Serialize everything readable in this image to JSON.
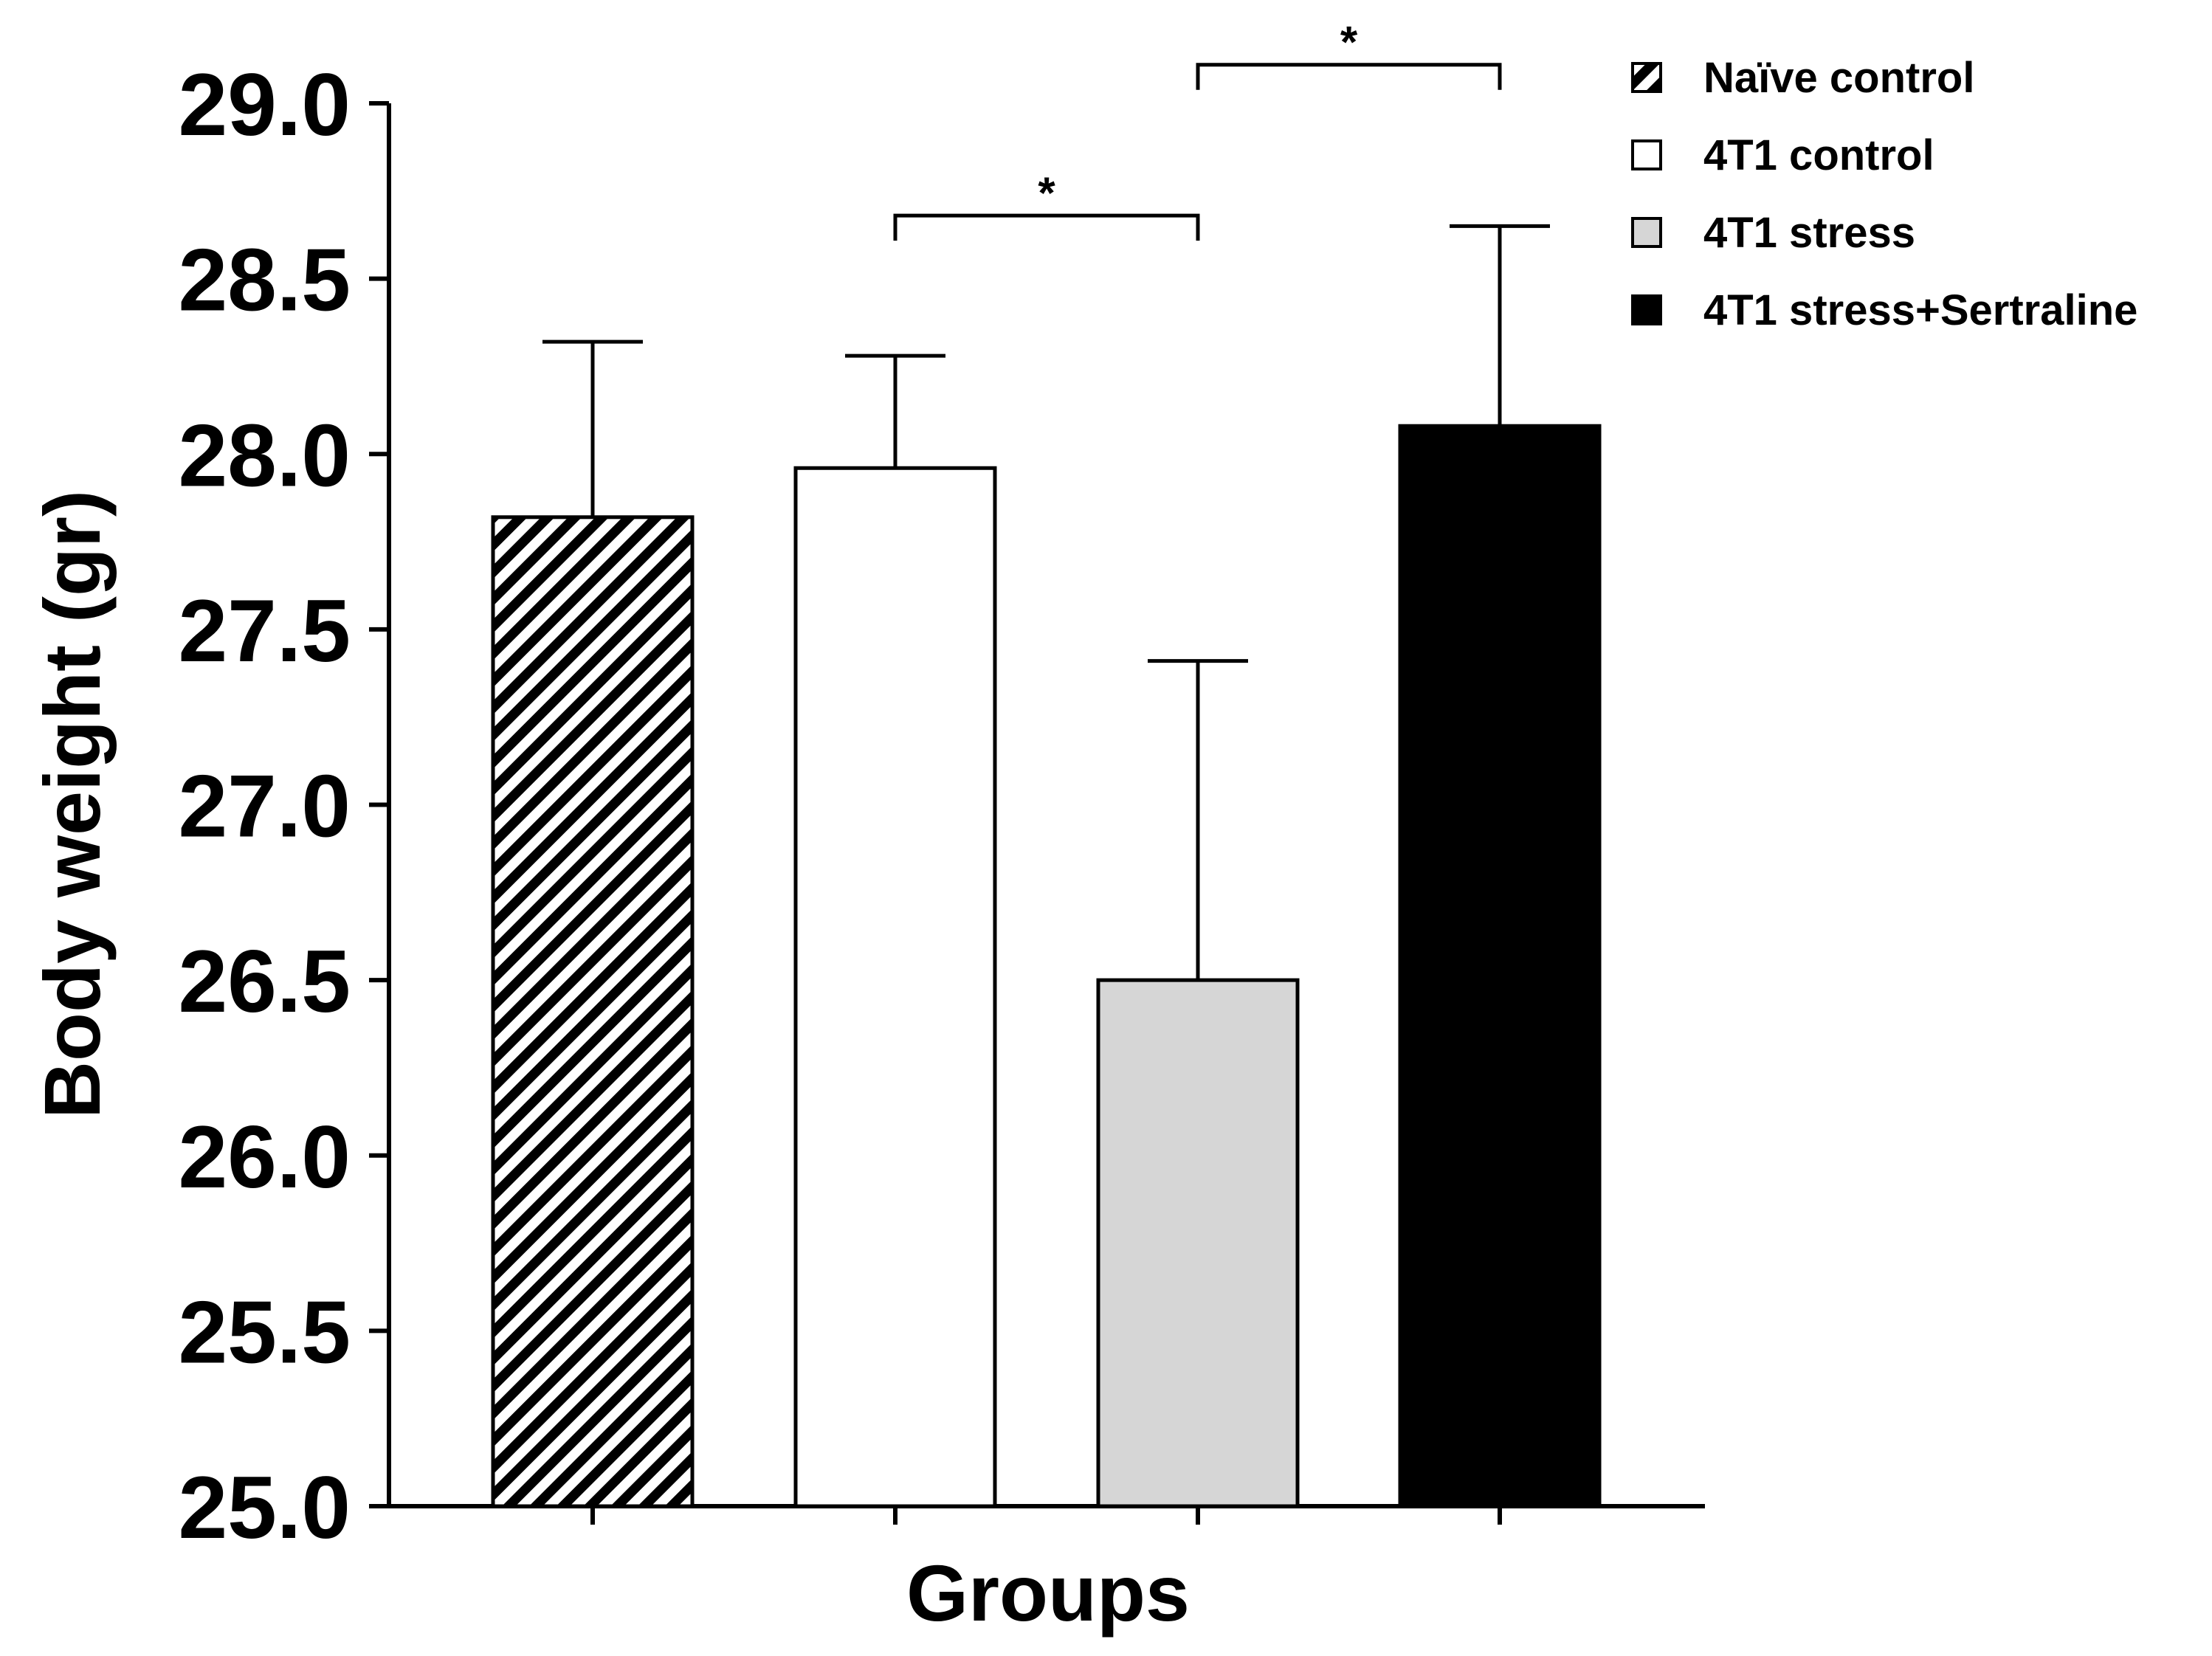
{
  "chart_data": {
    "type": "bar",
    "title": "",
    "xlabel": "Groups",
    "ylabel": "Body weight (gr)",
    "ylim": [
      25.0,
      29.0
    ],
    "yticks": [
      "25.0",
      "25.5",
      "26.0",
      "26.5",
      "27.0",
      "27.5",
      "28.0",
      "28.5",
      "29.0"
    ],
    "grid": false,
    "legend_position": "top-right",
    "series": [
      {
        "name": "Naïve control",
        "value": 27.82,
        "error": 0.5,
        "fill": "hatch",
        "color": "#000000"
      },
      {
        "name": "4T1 control",
        "value": 27.96,
        "error": 0.32,
        "fill": "solid",
        "color": "#ffffff"
      },
      {
        "name": "4T1 stress",
        "value": 26.5,
        "error": 0.91,
        "fill": "solid",
        "color": "#d6d6d6"
      },
      {
        "name": "4T1 stress+Sertraline",
        "value": 28.08,
        "error": 0.57,
        "fill": "solid",
        "color": "#000000"
      }
    ],
    "annotations": [
      {
        "from": "4T1 control",
        "to": "4T1 stress",
        "level": 28.68,
        "label": "*"
      },
      {
        "from": "4T1 stress",
        "to": "4T1 stress+Sertraline",
        "level": 29.11,
        "label": "*"
      }
    ]
  }
}
